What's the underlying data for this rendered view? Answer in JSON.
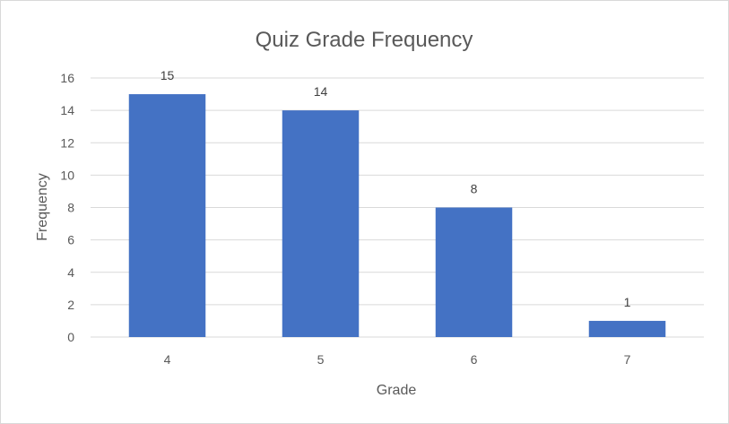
{
  "chart_data": {
    "type": "bar",
    "title": "Quiz Grade Frequency",
    "xlabel": "Grade",
    "ylabel": "Frequency",
    "categories": [
      "4",
      "5",
      "6",
      "7"
    ],
    "values": [
      15,
      14,
      8,
      1
    ],
    "data_labels": [
      "15",
      "14",
      "8",
      "1"
    ],
    "ylim": [
      0,
      16
    ],
    "y_ticks": [
      "0",
      "2",
      "4",
      "6",
      "8",
      "10",
      "12",
      "14",
      "16"
    ],
    "grid": true,
    "legend": "none",
    "bar_color": "#4472c4"
  }
}
